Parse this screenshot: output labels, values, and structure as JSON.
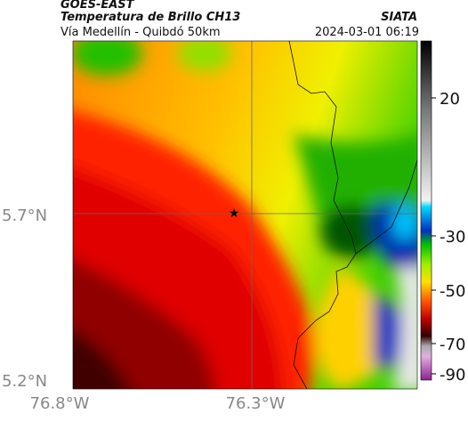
{
  "header": {
    "source": "GOES-EAST",
    "product": "Temperatura de Brillo CH13",
    "region": "Vía Medellín - Quibdó 50km",
    "agency": "SIATA",
    "datetime": "2024-03-01 06:19"
  },
  "axes": {
    "lat_labels": [
      "5.7°N",
      "5.2°N"
    ],
    "lon_labels": [
      "76.8°W",
      "76.3°W"
    ]
  },
  "colorbar": {
    "ticks": [
      20,
      -30,
      -50,
      -70,
      -90
    ]
  }
}
